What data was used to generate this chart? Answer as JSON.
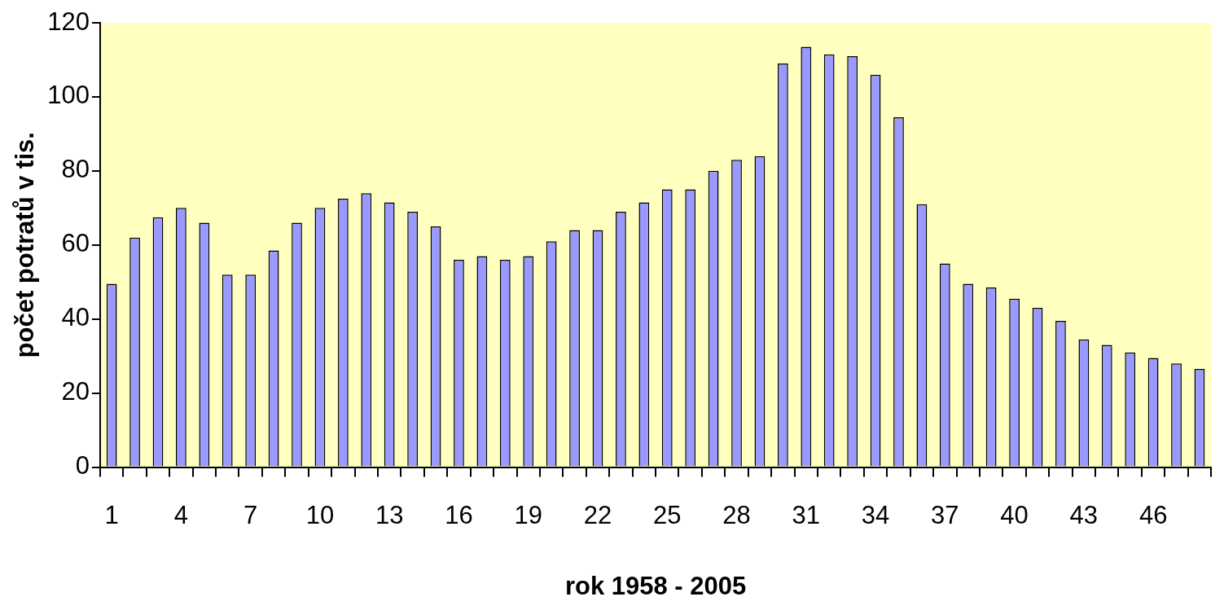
{
  "chart_data": {
    "type": "bar",
    "xlabel": "rok 1958 - 2005",
    "ylabel": "počet potratů v tis.",
    "categories": [
      "1",
      null,
      null,
      "4",
      null,
      null,
      "7",
      null,
      null,
      "10",
      null,
      null,
      "13",
      null,
      null,
      "16",
      null,
      null,
      "19",
      null,
      null,
      "22",
      null,
      null,
      "25",
      null,
      null,
      "28",
      null,
      null,
      "31",
      null,
      null,
      "34",
      null,
      null,
      "37",
      null,
      null,
      "40",
      null,
      null,
      "43",
      null,
      null,
      "46",
      null,
      null
    ],
    "values": [
      49.5,
      62,
      67.5,
      70,
      66,
      52,
      52,
      58.5,
      66,
      70,
      72.5,
      74,
      71.5,
      69,
      65,
      56,
      57,
      56,
      57,
      61,
      64,
      64,
      69,
      71.5,
      75,
      75,
      80,
      83,
      84,
      109,
      113.5,
      111.5,
      111,
      106,
      94.5,
      71,
      55,
      49.5,
      48.5,
      45.5,
      43,
      39.5,
      34.5,
      33,
      31,
      29.5,
      28,
      26.5
    ],
    "color": "#9999ff",
    "ylim": [
      0,
      120
    ],
    "yticks": [
      0,
      20,
      40,
      60,
      80,
      100,
      120
    ],
    "grid": false,
    "legend": false
  }
}
